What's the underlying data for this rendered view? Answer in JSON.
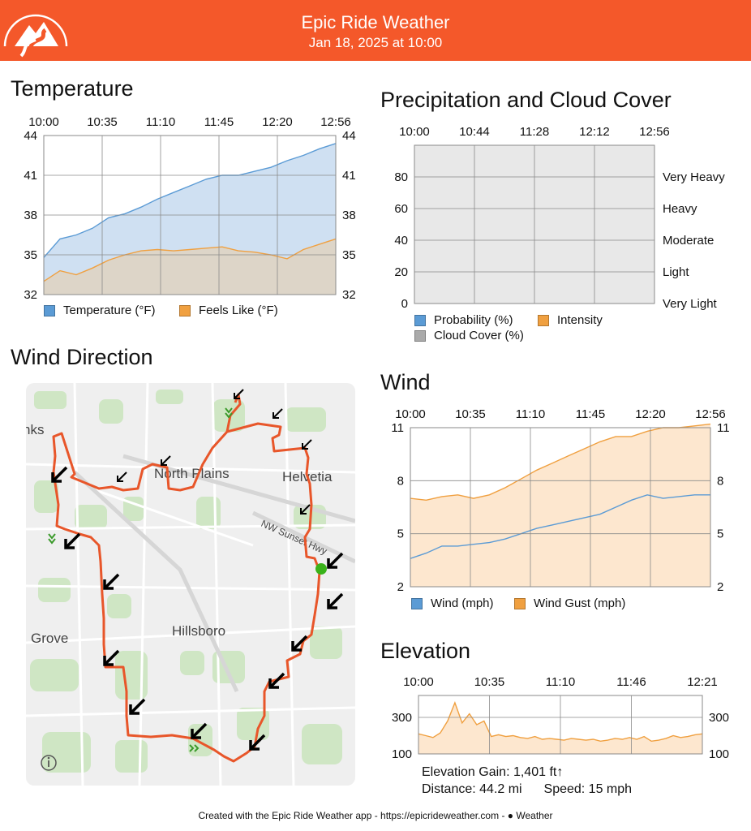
{
  "header": {
    "title": "Epic Ride Weather",
    "subtitle": "Jan 18, 2025 at 10:00",
    "accent_color": "#f4582a",
    "logo_icon": "mountain-road-icon"
  },
  "temperature": {
    "title": "Temperature",
    "chart_data": {
      "type": "area",
      "x_tick_labels": [
        "10:00",
        "10:35",
        "11:10",
        "11:45",
        "12:20",
        "12:56"
      ],
      "y_tick_labels": [
        "44",
        "41",
        "38",
        "35",
        "32"
      ],
      "ylim": [
        32,
        44
      ],
      "grid": true,
      "series": [
        {
          "name": "Temperature (°F)",
          "color": "#5b9bd5",
          "fill": "#cfe0f2",
          "values": [
            34.8,
            36.2,
            36.5,
            37.0,
            37.8,
            38.1,
            38.6,
            39.2,
            39.7,
            40.2,
            40.7,
            41.0,
            41.0,
            41.3,
            41.6,
            42.1,
            42.5,
            43.0,
            43.4
          ]
        },
        {
          "name": "Feels Like (°F)",
          "color": "#f0a040",
          "fill": "#ddd5c8",
          "values": [
            33.0,
            33.8,
            33.5,
            34.0,
            34.6,
            35.0,
            35.3,
            35.4,
            35.3,
            35.4,
            35.5,
            35.6,
            35.3,
            35.2,
            35.0,
            34.7,
            35.4,
            35.8,
            36.2
          ]
        }
      ],
      "legend": [
        {
          "label": "Temperature (°F)",
          "color": "#5b9bd5"
        },
        {
          "label": "Feels Like (°F)",
          "color": "#f0a040"
        }
      ]
    }
  },
  "precipitation": {
    "title": "Precipitation and Cloud Cover",
    "chart_data": {
      "type": "area",
      "x_tick_labels": [
        "10:00",
        "10:44",
        "11:28",
        "12:12",
        "12:56"
      ],
      "y_tick_labels": [
        "80",
        "60",
        "40",
        "20",
        "0"
      ],
      "right_tick_labels": [
        "Very Heavy",
        "Heavy",
        "Moderate",
        "Light",
        "Very Light"
      ],
      "ylim": [
        0,
        100
      ],
      "grid": true,
      "series": [
        {
          "name": "Probability (%)",
          "color": "#5b9bd5",
          "values": [
            0,
            0,
            0,
            0,
            0
          ]
        },
        {
          "name": "Intensity",
          "color": "#f0a040",
          "values": [
            0,
            0,
            0,
            0,
            0
          ]
        },
        {
          "name": "Cloud Cover (%)",
          "color": "#aaaaaa",
          "values": [
            0,
            0,
            0,
            0,
            0
          ]
        }
      ],
      "legend": [
        {
          "label": "Probability (%)",
          "color": "#5b9bd5"
        },
        {
          "label": "Intensity",
          "color": "#f0a040"
        },
        {
          "label": "Cloud Cover (%)",
          "color": "#aaaaaa"
        }
      ]
    }
  },
  "wind_direction": {
    "title": "Wind Direction",
    "map_labels": [
      "North Plains",
      "Helvetia",
      "NW Sunset Hwy",
      "Hillsboro",
      "Grove",
      "nks"
    ],
    "arrow_icon": "wind-arrow-icon",
    "route_color": "#e8562a",
    "info_icon": "info-icon"
  },
  "wind": {
    "title": "Wind",
    "chart_data": {
      "type": "area",
      "x_tick_labels": [
        "10:00",
        "10:35",
        "11:10",
        "11:45",
        "12:20",
        "12:56"
      ],
      "y_tick_labels": [
        "11",
        "8",
        "5",
        "2"
      ],
      "ylim": [
        2,
        11
      ],
      "grid": true,
      "series": [
        {
          "name": "Wind (mph)",
          "color": "#5b9bd5",
          "fill": "#ddd5c8",
          "values": [
            3.6,
            3.9,
            4.3,
            4.3,
            4.4,
            4.5,
            4.7,
            5.0,
            5.3,
            5.5,
            5.7,
            5.9,
            6.1,
            6.5,
            6.9,
            7.2,
            7.0,
            7.1,
            7.2,
            7.2
          ]
        },
        {
          "name": "Wind Gust (mph)",
          "color": "#f0a040",
          "fill": "#fde7cf",
          "values": [
            7.0,
            6.9,
            7.1,
            7.2,
            7.0,
            7.2,
            7.6,
            8.1,
            8.6,
            9.0,
            9.4,
            9.8,
            10.2,
            10.5,
            10.5,
            10.8,
            11.0,
            11.0,
            11.1,
            11.2
          ]
        }
      ],
      "legend": [
        {
          "label": "Wind (mph)",
          "color": "#5b9bd5"
        },
        {
          "label": "Wind Gust (mph)",
          "color": "#f0a040"
        }
      ]
    }
  },
  "elevation": {
    "title": "Elevation",
    "chart_data": {
      "type": "area",
      "x_tick_labels": [
        "10:00",
        "10:35",
        "11:10",
        "11:46",
        "12:21"
      ],
      "y_tick_labels": [
        "300",
        "100"
      ],
      "ylim": [
        100,
        420
      ],
      "grid": true,
      "series": [
        {
          "name": "Elevation (ft)",
          "color": "#f0a040",
          "fill": "#fde7cf",
          "values": [
            210,
            200,
            190,
            215,
            280,
            380,
            270,
            320,
            260,
            280,
            195,
            205,
            195,
            200,
            190,
            185,
            195,
            180,
            185,
            180,
            175,
            185,
            180,
            175,
            180,
            170,
            175,
            185,
            180,
            190,
            180,
            195,
            170,
            175,
            185,
            200,
            190,
            195,
            205,
            210
          ]
        }
      ]
    },
    "gain": "Elevation Gain: 1,401 ft↑",
    "distance": "Distance: 44.2 mi",
    "speed": "Speed: 15 mph"
  },
  "footer": {
    "text": "Created with the Epic Ride Weather app - https://epicrideweather.com - ",
    "brand": "Weather",
    "brand_icon": "apple-icon"
  }
}
